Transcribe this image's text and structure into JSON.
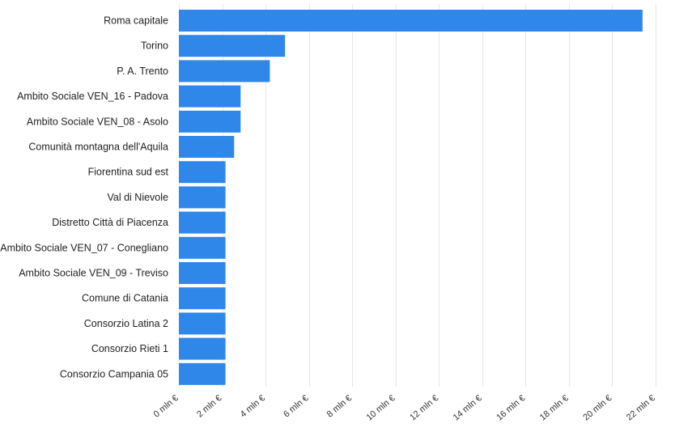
{
  "chart_data": {
    "type": "bar",
    "orientation": "horizontal",
    "categories": [
      "Roma capitale",
      "Torino",
      "P. A. Trento",
      "Ambito Sociale VEN_16 - Padova",
      "Ambito Sociale VEN_08 - Asolo",
      "Comunità montagna dell'Aquila",
      "Fiorentina sud est",
      "Val di Nievole",
      "Distretto Città di Piacenza",
      "Ambito Sociale VEN_07 - Conegliano",
      "Ambito Sociale VEN_09 - Treviso",
      "Comune di Catania",
      "Consorzio Latina 2",
      "Consorzio Rieti 1",
      "Consorzio Campania 05"
    ],
    "values": [
      21.4,
      4.9,
      4.2,
      2.85,
      2.85,
      2.55,
      2.15,
      2.15,
      2.15,
      2.15,
      2.15,
      2.15,
      2.15,
      2.15,
      2.15
    ],
    "xlim": [
      0,
      22
    ],
    "x_ticks": [
      0,
      2,
      4,
      6,
      8,
      10,
      12,
      14,
      16,
      18,
      20,
      22
    ],
    "x_tick_labels": [
      "0 mln €",
      "2 mln €",
      "4 mln €",
      "6 mln €",
      "8 mln €",
      "10 mln €",
      "12 mln €",
      "14 mln €",
      "16 mln €",
      "18 mln €",
      "20 mln €",
      "22 mln €"
    ],
    "bar_color": "#3087ea",
    "grid": true
  }
}
